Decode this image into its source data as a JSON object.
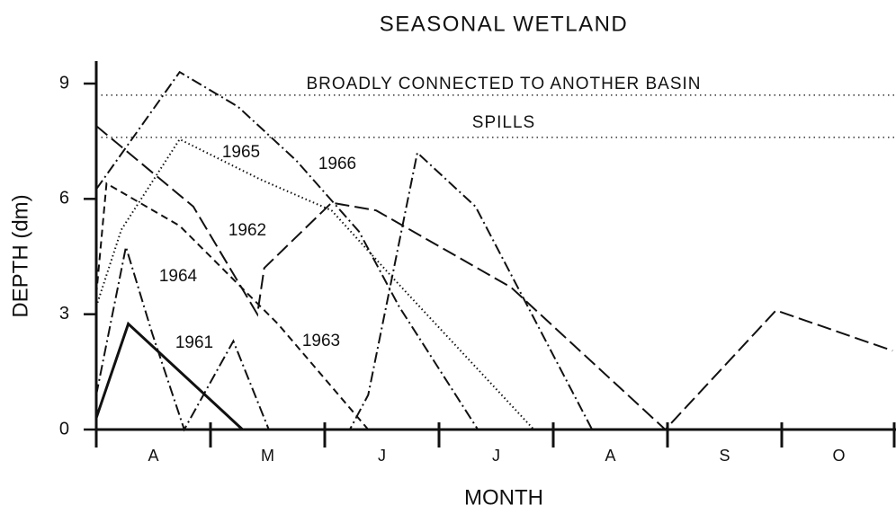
{
  "chart_data": {
    "type": "line",
    "title": "SEASONAL WETLAND",
    "x_label": "MONTH",
    "y_label": "DEPTH (dm)",
    "categories": [
      "A",
      "M",
      "J",
      "J",
      "A",
      "S",
      "O"
    ],
    "xlim": [
      0,
      7
    ],
    "xticks": [
      0,
      1,
      2,
      3,
      4,
      5,
      6,
      7
    ],
    "ylim": [
      0,
      9
    ],
    "yticks": [
      0,
      3,
      6,
      9
    ],
    "reference_lines": [
      {
        "value": 8.7,
        "label": "BROADLY CONNECTED TO ANOTHER BASIN"
      },
      {
        "value": 7.6,
        "label": "SPILLS"
      }
    ],
    "series": [
      {
        "name": "1961",
        "color": "#111111",
        "dash": "solid",
        "x": [
          0,
          0.28,
          1.28
        ],
        "values": [
          0.3,
          2.75,
          0
        ]
      },
      {
        "name": "1962",
        "color": "#111111",
        "dash": "long-dash",
        "x": [
          0,
          0.85,
          1.41,
          1.47,
          2.06,
          2.45,
          3.63,
          4.98,
          5.95,
          6.97
        ],
        "values": [
          7.9,
          5.8,
          3.0,
          4.2,
          5.9,
          5.7,
          3.7,
          0,
          3.1,
          2.05
        ]
      },
      {
        "name": "1963",
        "color": "#111111",
        "dash": "short-dash",
        "x": [
          0,
          0.09,
          0.73,
          1.59,
          2.38
        ],
        "values": [
          3.5,
          6.4,
          5.3,
          2.75,
          0
        ]
      },
      {
        "name": "1964",
        "color": "#111111",
        "dash": "dash-dot",
        "x": [
          0,
          0.26,
          0.49,
          0.77,
          1.2,
          1.51,
          2.22,
          2.38,
          2.81,
          3.32,
          4.34
        ],
        "values": [
          0.9,
          4.75,
          2.5,
          0,
          2.3,
          0,
          0,
          0.9,
          7.2,
          5.8,
          0
        ]
      },
      {
        "name": "1965",
        "color": "#111111",
        "dash": "dotted",
        "x": [
          0,
          0.22,
          0.73,
          1.44,
          2.06,
          2.61,
          3.83
        ],
        "values": [
          3.2,
          5.2,
          7.55,
          6.5,
          5.7,
          3.9,
          0
        ]
      },
      {
        "name": "1966",
        "color": "#111111",
        "dash": "dash-dot",
        "x": [
          0,
          0.73,
          1.24,
          1.75,
          2.3,
          2.65,
          3.34
        ],
        "values": [
          6.25,
          9.3,
          8.4,
          7.0,
          5.15,
          3.2,
          0
        ]
      }
    ]
  }
}
